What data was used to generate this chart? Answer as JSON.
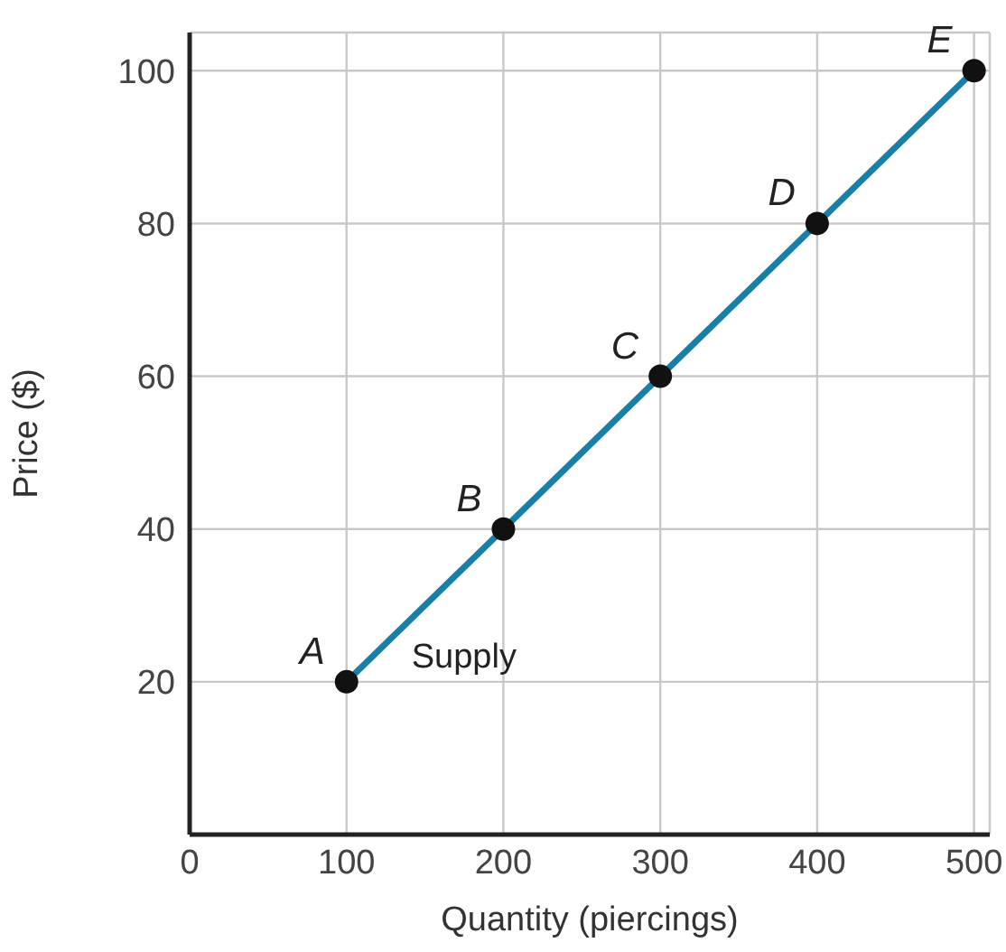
{
  "chart_data": {
    "type": "line",
    "xlabel": "Quantity (piercings)",
    "ylabel": "Price ($)",
    "x": [
      100,
      200,
      300,
      400,
      500
    ],
    "series": [
      {
        "name": "Supply",
        "color": "#1a7fa6",
        "values": [
          20,
          40,
          60,
          80,
          100
        ]
      }
    ],
    "xlim": [
      0,
      510
    ],
    "xticks": [
      0,
      100,
      200,
      300,
      400,
      500
    ],
    "ylim": [
      0,
      105
    ],
    "yticks": [
      20,
      40,
      60,
      80,
      100
    ],
    "grid": true,
    "legend": false,
    "marker": "circle",
    "line_style": "solid",
    "annotations": [
      {
        "text": "A",
        "x": 100,
        "y": 20
      },
      {
        "text": "B",
        "x": 200,
        "y": 40
      },
      {
        "text": "C",
        "x": 300,
        "y": 60
      },
      {
        "text": "D",
        "x": 400,
        "y": 80
      },
      {
        "text": "E",
        "x": 500,
        "y": 100
      }
    ]
  }
}
